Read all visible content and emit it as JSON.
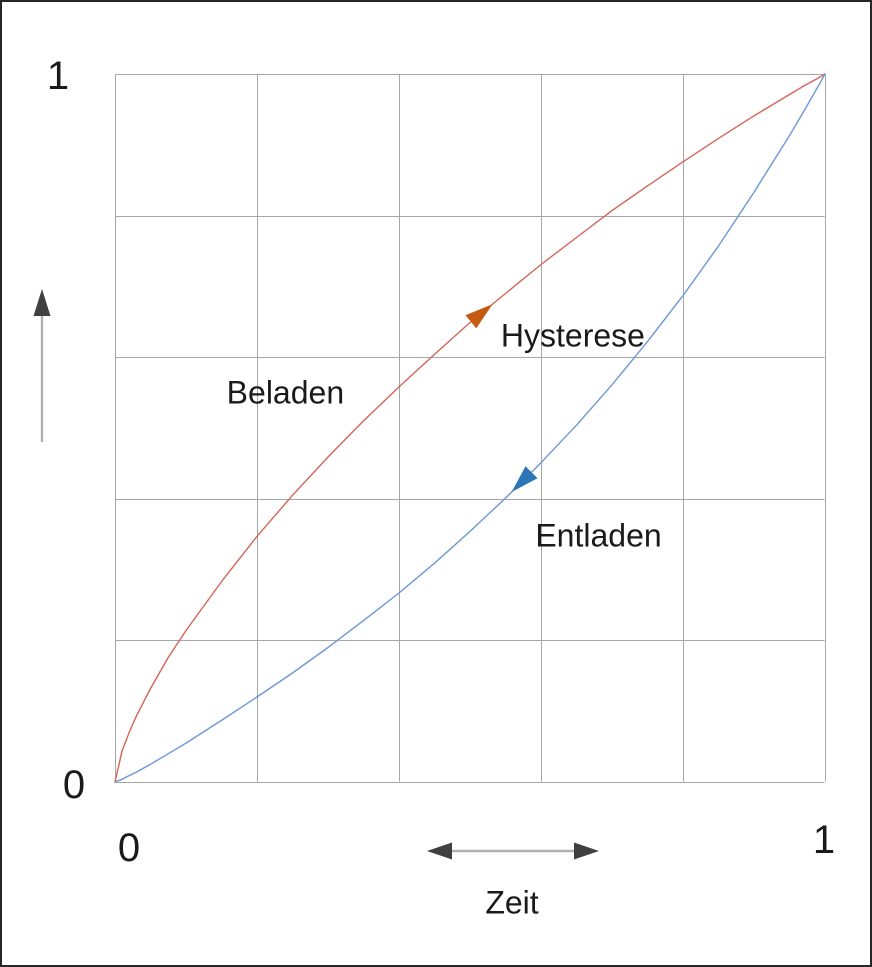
{
  "figure": {
    "background": "#ffffff",
    "border_color": "#262626",
    "text_color": "#1a1a1a"
  },
  "chart_data": {
    "type": "line",
    "title": "",
    "xlabel": "Zeit",
    "ylabel": "",
    "xlim": [
      0,
      1
    ],
    "ylim": [
      0,
      1
    ],
    "x_ticks": [
      {
        "value": 0,
        "label": "0"
      },
      {
        "value": 1,
        "label": "1"
      }
    ],
    "y_ticks": [
      {
        "value": 0,
        "label": "0"
      },
      {
        "value": 1,
        "label": "1"
      }
    ],
    "grid": {
      "on": true,
      "divisions": 5,
      "color": "#a6a6a6"
    },
    "legend_position": "none",
    "series": [
      {
        "name": "Beladen",
        "color": "#d4655a",
        "arrow_color": "#c55a11",
        "arrow_at_x": 0.515,
        "arrow_direction": "forward",
        "x": [
          0,
          0.01,
          0.02,
          0.03,
          0.05,
          0.075,
          0.1,
          0.15,
          0.2,
          0.25,
          0.3,
          0.35,
          0.4,
          0.45,
          0.5,
          0.55,
          0.6,
          0.65,
          0.7,
          0.75,
          0.8,
          0.85,
          0.9,
          0.95,
          0.97,
          0.99,
          1
        ],
        "y": [
          0,
          0.044,
          0.07,
          0.093,
          0.132,
          0.176,
          0.214,
          0.283,
          0.347,
          0.405,
          0.459,
          0.51,
          0.558,
          0.604,
          0.649,
          0.69,
          0.731,
          0.769,
          0.807,
          0.842,
          0.876,
          0.909,
          0.941,
          0.971,
          0.983,
          0.994,
          1
        ]
      },
      {
        "name": "Entladen",
        "color": "#6b97d6",
        "arrow_color": "#2e75b6",
        "arrow_at_x": 0.574,
        "arrow_direction": "backward",
        "x": [
          0,
          0.01,
          0.02,
          0.03,
          0.05,
          0.075,
          0.1,
          0.15,
          0.2,
          0.25,
          0.3,
          0.35,
          0.4,
          0.45,
          0.5,
          0.55,
          0.6,
          0.65,
          0.7,
          0.75,
          0.8,
          0.85,
          0.9,
          0.95,
          0.97,
          0.99,
          1
        ],
        "y": [
          0,
          0.004,
          0.009,
          0.014,
          0.025,
          0.04,
          0.055,
          0.087,
          0.12,
          0.154,
          0.19,
          0.228,
          0.267,
          0.309,
          0.354,
          0.401,
          0.451,
          0.504,
          0.561,
          0.622,
          0.687,
          0.757,
          0.833,
          0.913,
          0.947,
          0.982,
          1
        ]
      }
    ],
    "annotations": [
      {
        "text": "Beladen",
        "x": 0.24,
        "y": 0.549
      },
      {
        "text": "Hysterese",
        "x": 0.645,
        "y": 0.63
      },
      {
        "text": "Entladen",
        "x": 0.681,
        "y": 0.347
      }
    ],
    "axis_arrows": {
      "y_axis_icon": "up-arrow-icon",
      "x_axis_icon": "double-horizontal-arrow-icon",
      "head_color": "#404040",
      "line_color": "#b0b0b0"
    }
  }
}
